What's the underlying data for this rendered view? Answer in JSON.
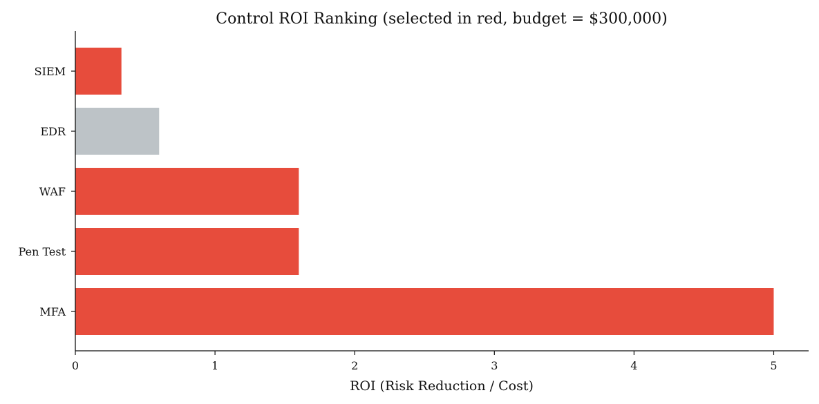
{
  "chart_data": {
    "type": "bar",
    "orientation": "horizontal",
    "title": "Control ROI Ranking (selected in red, budget = $300,000)",
    "xlabel": "ROI (Risk Reduction / Cost)",
    "ylabel": "",
    "xlim": [
      0,
      5.25
    ],
    "xticks": [
      0,
      1,
      2,
      3,
      4,
      5
    ],
    "categories": [
      "MFA",
      "Pen Test",
      "WAF",
      "EDR",
      "SIEM"
    ],
    "values": [
      5.0,
      1.6,
      1.6,
      0.6,
      0.33
    ],
    "selected": [
      true,
      true,
      true,
      false,
      true
    ],
    "grid": false,
    "legend": "none",
    "colors": {
      "selected": "#e74c3c",
      "unselected": "#bdc3c7"
    }
  }
}
